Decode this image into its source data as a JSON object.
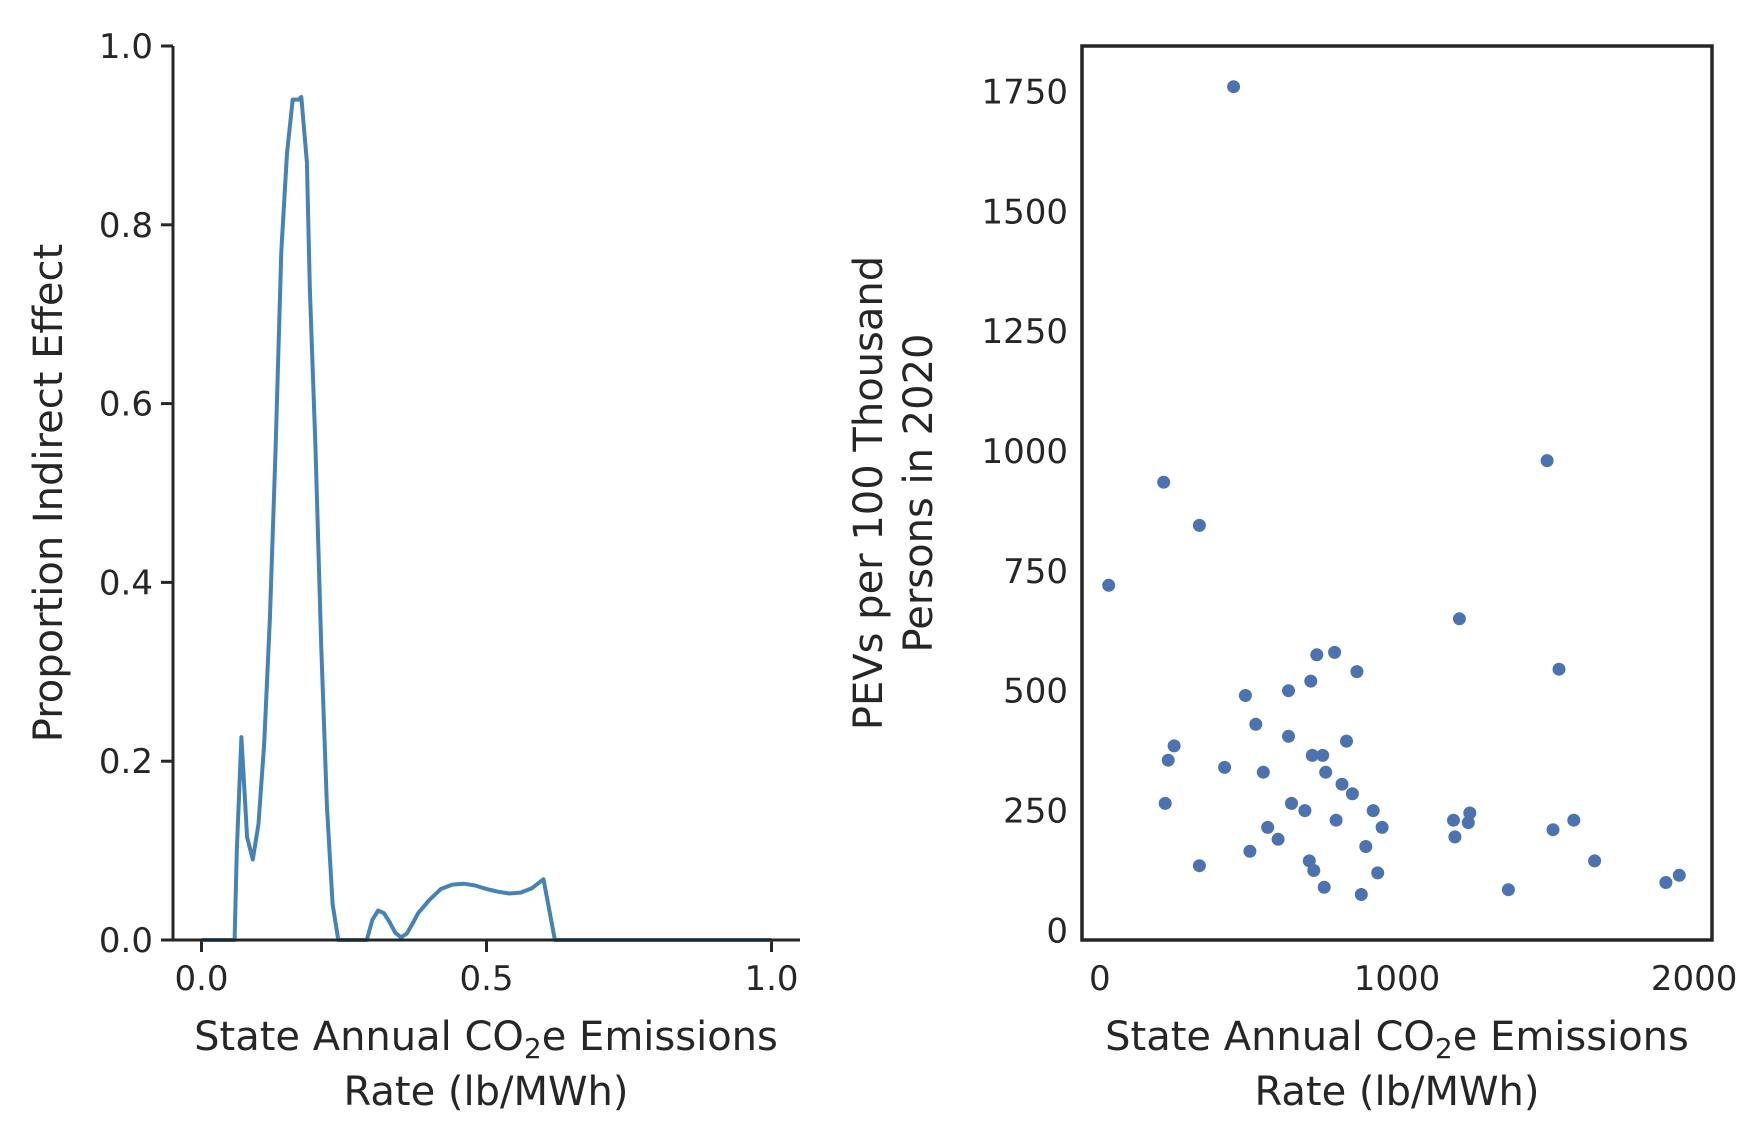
{
  "chart_data": [
    {
      "type": "line",
      "xlabel": {
        "line1_pre": "State Annual CO",
        "line1_sub": "2",
        "line1_post": "e Emissions",
        "line2": "Rate (lb/MWh)"
      },
      "ylabel": "Proportion Indirect Effect",
      "xlim": [
        -0.05,
        1.05
      ],
      "ylim": [
        0,
        1
      ],
      "xticks": [
        0.0,
        0.5,
        1.0
      ],
      "xtick_labels": [
        "0.0",
        "0.5",
        "1.0"
      ],
      "yticks": [
        0.0,
        0.2,
        0.4,
        0.6,
        0.8,
        1.0
      ],
      "ytick_labels": [
        "0.0",
        "0.2",
        "0.4",
        "0.6",
        "0.8",
        "1.0"
      ],
      "grid": false,
      "color": "#4682b4",
      "x": [
        0.0,
        0.02,
        0.04,
        0.058,
        0.062,
        0.07,
        0.08,
        0.09,
        0.1,
        0.11,
        0.12,
        0.13,
        0.14,
        0.15,
        0.16,
        0.17,
        0.175,
        0.185,
        0.19,
        0.2,
        0.21,
        0.22,
        0.23,
        0.24,
        0.243,
        0.25,
        0.29,
        0.3,
        0.31,
        0.32,
        0.33,
        0.34,
        0.35,
        0.36,
        0.37,
        0.38,
        0.4,
        0.42,
        0.44,
        0.46,
        0.48,
        0.5,
        0.52,
        0.54,
        0.56,
        0.58,
        0.6,
        0.62,
        0.63,
        0.64,
        0.7,
        0.8,
        0.9,
        1.0
      ],
      "y": [
        0.0,
        0.0,
        0.0,
        0.0,
        0.1,
        0.227,
        0.115,
        0.09,
        0.13,
        0.22,
        0.36,
        0.55,
        0.77,
        0.88,
        0.94,
        0.94,
        0.943,
        0.87,
        0.73,
        0.55,
        0.33,
        0.15,
        0.04,
        0.0,
        0.0,
        0.0,
        0.0,
        0.023,
        0.033,
        0.03,
        0.02,
        0.008,
        0.003,
        0.007,
        0.018,
        0.03,
        0.045,
        0.057,
        0.062,
        0.063,
        0.061,
        0.057,
        0.054,
        0.052,
        0.053,
        0.058,
        0.068,
        0.0,
        0.0,
        0.0,
        0.0,
        0.0,
        0.0,
        0.0
      ]
    },
    {
      "type": "scatter",
      "xlabel": {
        "line1_pre": "State Annual CO",
        "line1_sub": "2",
        "line1_post": "e Emissions",
        "line2": "Rate (lb/MWh)"
      },
      "ylabel": {
        "line1": "PEVs per 100 Thousand",
        "line2": "Persons in 2020"
      },
      "xlim": [
        -60,
        2060
      ],
      "ylim": [
        -20,
        1845
      ],
      "xticks": [
        0,
        1000,
        2000
      ],
      "xtick_labels": [
        "0",
        "1000",
        "2000"
      ],
      "yticks": [
        0,
        250,
        500,
        750,
        1000,
        1250,
        1500,
        1750
      ],
      "ytick_labels": [
        "0",
        "250",
        "500",
        "750",
        "1000",
        "1250",
        "1500",
        "1750"
      ],
      "grid": false,
      "color": "#4c72b0",
      "points": [
        [
          30,
          720
        ],
        [
          215,
          935
        ],
        [
          220,
          265
        ],
        [
          230,
          355
        ],
        [
          250,
          385
        ],
        [
          335,
          845
        ],
        [
          335,
          135
        ],
        [
          420,
          340
        ],
        [
          450,
          1760
        ],
        [
          490,
          490
        ],
        [
          505,
          165
        ],
        [
          525,
          430
        ],
        [
          550,
          330
        ],
        [
          565,
          215
        ],
        [
          600,
          190
        ],
        [
          635,
          500
        ],
        [
          635,
          405
        ],
        [
          645,
          265
        ],
        [
          690,
          250
        ],
        [
          705,
          145
        ],
        [
          710,
          520
        ],
        [
          715,
          365
        ],
        [
          720,
          125
        ],
        [
          730,
          575
        ],
        [
          750,
          365
        ],
        [
          755,
          90
        ],
        [
          760,
          330
        ],
        [
          790,
          580
        ],
        [
          795,
          230
        ],
        [
          815,
          305
        ],
        [
          830,
          395
        ],
        [
          850,
          285
        ],
        [
          865,
          540
        ],
        [
          880,
          75
        ],
        [
          895,
          175
        ],
        [
          920,
          250
        ],
        [
          935,
          120
        ],
        [
          950,
          215
        ],
        [
          1190,
          230
        ],
        [
          1195,
          195
        ],
        [
          1210,
          650
        ],
        [
          1240,
          225
        ],
        [
          1245,
          245
        ],
        [
          1375,
          85
        ],
        [
          1505,
          980
        ],
        [
          1525,
          210
        ],
        [
          1545,
          545
        ],
        [
          1595,
          230
        ],
        [
          1665,
          145
        ],
        [
          1905,
          100
        ],
        [
          1950,
          115
        ]
      ]
    }
  ]
}
